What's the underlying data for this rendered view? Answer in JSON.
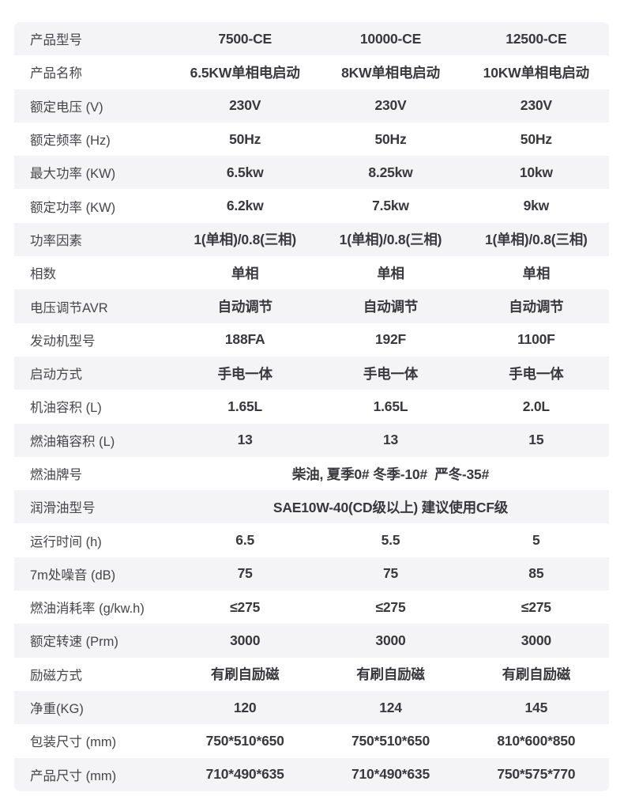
{
  "colors": {
    "page_bg": "#ffffff",
    "row_alt_bg": "#f4f4f6",
    "row_bg": "#ffffff",
    "label_text": "#46464b",
    "value_text": "#38383d"
  },
  "table": {
    "columns": [
      "7500-CE",
      "10000-CE",
      "12500-CE"
    ],
    "rows": [
      {
        "label": "产品型号",
        "values": [
          "7500-CE",
          "10000-CE",
          "12500-CE"
        ]
      },
      {
        "label": "产品名称",
        "values": [
          "6.5KW单相电启动",
          "8KW单相电启动",
          "10KW单相电启动"
        ]
      },
      {
        "label": "额定电压 (V)",
        "values": [
          "230V",
          "230V",
          "230V"
        ]
      },
      {
        "label": "额定频率 (Hz)",
        "values": [
          "50Hz",
          "50Hz",
          "50Hz"
        ]
      },
      {
        "label": "最大功率 (KW)",
        "values": [
          "6.5kw",
          "8.25kw",
          "10kw"
        ]
      },
      {
        "label": "额定功率 (KW)",
        "values": [
          "6.2kw",
          "7.5kw",
          "9kw"
        ]
      },
      {
        "label": "功率因素",
        "values": [
          "1(单相)/0.8(三相)",
          "1(单相)/0.8(三相)",
          "1(单相)/0.8(三相)"
        ]
      },
      {
        "label": "相数",
        "values": [
          "单相",
          "单相",
          "单相"
        ]
      },
      {
        "label": "电压调节AVR",
        "values": [
          "自动调节",
          "自动调节",
          "自动调节"
        ]
      },
      {
        "label": "发动机型号",
        "values": [
          "188FA",
          "192F",
          "1100F"
        ]
      },
      {
        "label": "启动方式",
        "values": [
          "手电一体",
          "手电一体",
          "手电一体"
        ]
      },
      {
        "label": "机油容积 (L)",
        "values": [
          "1.65L",
          "1.65L",
          "2.0L"
        ]
      },
      {
        "label": "燃油箱容积 (L)",
        "values": [
          "13",
          "13",
          "15"
        ]
      },
      {
        "label": "燃油牌号",
        "span": "柴油, 夏季0# 冬季-10#  严冬-35#"
      },
      {
        "label": "润滑油型号",
        "span": "SAE10W-40(CD级以上) 建议使用CF级"
      },
      {
        "label": "运行时间 (h)",
        "values": [
          "6.5",
          "5.5",
          "5"
        ]
      },
      {
        "label": "7m处噪音 (dB)",
        "values": [
          "75",
          "75",
          "85"
        ]
      },
      {
        "label": "燃油消耗率 (g/kw.h)",
        "values": [
          "≤275",
          "≤275",
          "≤275"
        ]
      },
      {
        "label": "额定转速 (Prm)",
        "values": [
          "3000",
          "3000",
          "3000"
        ]
      },
      {
        "label": "励磁方式",
        "values": [
          "有刷自励磁",
          "有刷自励磁",
          "有刷自励磁"
        ]
      },
      {
        "label": "净重(KG)",
        "values": [
          "120",
          "124",
          "145"
        ]
      },
      {
        "label": "包装尺寸 (mm)",
        "values": [
          "750*510*650",
          "750*510*650",
          "810*600*850"
        ]
      },
      {
        "label": "产品尺寸 (mm)",
        "values": [
          "710*490*635",
          "710*490*635",
          "750*575*770"
        ]
      }
    ]
  }
}
